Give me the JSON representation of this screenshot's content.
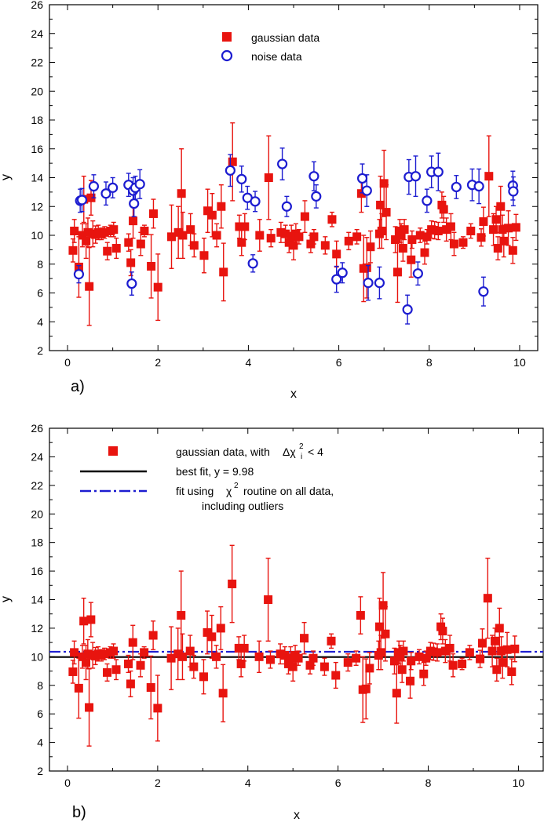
{
  "chart_data": [
    {
      "type": "scatter",
      "panel_label": "a)",
      "xlabel": "x",
      "ylabel": "y",
      "xlim": [
        -0.4,
        10.4
      ],
      "ylim": [
        2,
        26
      ],
      "xticks": [
        "0",
        "2",
        "4",
        "6",
        "8",
        "10"
      ],
      "yticks": [
        "2",
        "4",
        "6",
        "8",
        "10",
        "12",
        "14",
        "16",
        "18",
        "20",
        "22",
        "24",
        "26"
      ],
      "legend_position": "top-center",
      "legend": [
        "gaussian data",
        "noise data"
      ],
      "series": [
        {
          "name": "gaussian data",
          "marker": "filled-square",
          "color": "#e8140f",
          "points": [
            [
              0.12,
              8.95,
              0.8
            ],
            [
              0.15,
              10.3,
              0.8
            ],
            [
              0.25,
              7.8,
              2.1
            ],
            [
              0.33,
              10.0,
              0.8
            ],
            [
              0.36,
              12.5,
              1.6
            ],
            [
              0.41,
              9.6,
              1.2
            ],
            [
              0.45,
              10.2,
              1.0
            ],
            [
              0.48,
              6.45,
              2.7
            ],
            [
              0.52,
              12.6,
              1.2
            ],
            [
              0.56,
              10.1,
              0.9
            ],
            [
              0.62,
              10.05,
              0.6
            ],
            [
              0.68,
              10.2,
              0.5
            ],
            [
              0.75,
              10.1,
              0.4
            ],
            [
              0.82,
              10.2,
              0.4
            ],
            [
              0.88,
              8.9,
              0.6
            ],
            [
              0.95,
              10.3,
              0.4
            ],
            [
              1.02,
              10.4,
              0.5
            ],
            [
              1.08,
              9.1,
              0.7
            ],
            [
              1.35,
              9.5,
              0.6
            ],
            [
              1.4,
              8.1,
              0.9
            ],
            [
              1.45,
              11.0,
              1.2
            ],
            [
              1.62,
              9.4,
              0.8
            ],
            [
              1.7,
              10.3,
              0.4
            ],
            [
              1.85,
              7.85,
              2.2
            ],
            [
              1.9,
              11.5,
              1.0
            ],
            [
              2.0,
              6.4,
              2.3
            ],
            [
              2.3,
              9.9,
              2.2
            ],
            [
              2.45,
              10.2,
              1.8
            ],
            [
              2.52,
              12.9,
              3.1
            ],
            [
              2.55,
              10.0,
              1.6
            ],
            [
              2.72,
              10.4,
              1.1
            ],
            [
              2.8,
              9.3,
              0.8
            ],
            [
              3.02,
              8.6,
              1.2
            ],
            [
              3.1,
              11.7,
              1.5
            ],
            [
              3.2,
              11.4,
              1.5
            ],
            [
              3.3,
              10.0,
              0.8
            ],
            [
              3.4,
              12.0,
              1.5
            ],
            [
              3.45,
              7.45,
              2.0
            ],
            [
              3.65,
              15.1,
              2.7
            ],
            [
              3.8,
              10.6,
              0.8
            ],
            [
              3.85,
              9.5,
              0.9
            ],
            [
              3.92,
              10.6,
              0.9
            ],
            [
              4.25,
              10.0,
              1.1
            ],
            [
              4.45,
              14.0,
              2.9
            ],
            [
              4.5,
              9.8,
              0.6
            ],
            [
              4.72,
              10.2,
              0.7
            ],
            [
              4.82,
              10.1,
              0.6
            ],
            [
              4.9,
              9.5,
              0.7
            ],
            [
              4.95,
              9.9,
              0.8
            ],
            [
              5.0,
              9.3,
              1.0
            ],
            [
              5.05,
              10.1,
              0.7
            ],
            [
              5.12,
              9.9,
              0.5
            ],
            [
              5.25,
              11.3,
              1.1
            ],
            [
              5.38,
              9.4,
              0.6
            ],
            [
              5.45,
              9.9,
              0.5
            ],
            [
              5.7,
              9.3,
              0.6
            ],
            [
              5.85,
              11.1,
              0.5
            ],
            [
              5.95,
              8.7,
              0.9
            ],
            [
              6.22,
              9.6,
              0.6
            ],
            [
              6.4,
              9.9,
              0.5
            ],
            [
              6.5,
              12.9,
              1.3
            ],
            [
              6.55,
              7.7,
              2.3
            ],
            [
              6.62,
              7.75,
              2.1
            ],
            [
              6.7,
              9.2,
              1.1
            ],
            [
              6.9,
              10.1,
              1.0
            ],
            [
              6.92,
              12.1,
              2.0
            ],
            [
              6.95,
              10.3,
              1.2
            ],
            [
              7.0,
              13.6,
              2.3
            ],
            [
              7.05,
              11.6,
              1.9
            ],
            [
              7.25,
              9.7,
              0.9
            ],
            [
              7.3,
              7.45,
              2.1
            ],
            [
              7.35,
              10.3,
              0.8
            ],
            [
              7.38,
              10.0,
              0.8
            ],
            [
              7.42,
              9.1,
              0.9
            ],
            [
              7.45,
              10.4,
              0.7
            ],
            [
              7.6,
              8.3,
              1.2
            ],
            [
              7.62,
              9.7,
              0.6
            ],
            [
              7.8,
              10.0,
              0.5
            ],
            [
              7.9,
              8.8,
              0.8
            ],
            [
              7.95,
              9.9,
              0.5
            ],
            [
              8.05,
              10.4,
              0.6
            ],
            [
              8.12,
              10.35,
              0.6
            ],
            [
              8.2,
              10.3,
              0.6
            ],
            [
              8.28,
              12.1,
              0.9
            ],
            [
              8.32,
              11.8,
              0.9
            ],
            [
              8.38,
              10.4,
              0.8
            ],
            [
              8.48,
              10.6,
              0.9
            ],
            [
              8.55,
              9.4,
              0.8
            ],
            [
              8.75,
              9.5,
              0.4
            ],
            [
              8.92,
              10.3,
              0.5
            ],
            [
              9.15,
              9.85,
              0.6
            ],
            [
              9.2,
              10.95,
              1.0
            ],
            [
              9.32,
              14.1,
              2.8
            ],
            [
              9.42,
              10.4,
              1.1
            ],
            [
              9.48,
              11.1,
              0.9
            ],
            [
              9.52,
              9.1,
              0.8
            ],
            [
              9.58,
              12.0,
              1.4
            ],
            [
              9.62,
              10.4,
              1.0
            ],
            [
              9.65,
              9.6,
              1.1
            ],
            [
              9.75,
              10.5,
              1.2
            ],
            [
              9.85,
              8.95,
              0.9
            ],
            [
              9.92,
              10.55,
              0.9
            ]
          ]
        },
        {
          "name": "noise data",
          "marker": "open-circle",
          "color": "#1c1cd0",
          "points": [
            [
              0.25,
              7.3,
              0.6
            ],
            [
              0.28,
              12.4,
              0.8
            ],
            [
              0.32,
              12.45,
              0.8
            ],
            [
              0.58,
              13.4,
              0.8
            ],
            [
              0.85,
              12.9,
              0.8
            ],
            [
              1.0,
              13.3,
              0.7
            ],
            [
              1.35,
              13.5,
              0.8
            ],
            [
              1.42,
              6.65,
              0.8
            ],
            [
              1.45,
              13.1,
              0.9
            ],
            [
              1.47,
              12.2,
              0.9
            ],
            [
              1.5,
              13.3,
              0.8
            ],
            [
              1.6,
              13.55,
              1.0
            ],
            [
              3.6,
              14.5,
              1.1
            ],
            [
              3.85,
              13.9,
              0.9
            ],
            [
              3.98,
              12.6,
              0.8
            ],
            [
              4.1,
              8.05,
              0.6
            ],
            [
              4.15,
              12.35,
              0.7
            ],
            [
              4.75,
              14.95,
              1.1
            ],
            [
              4.85,
              12.0,
              0.7
            ],
            [
              5.45,
              14.1,
              1.0
            ],
            [
              5.5,
              12.7,
              0.8
            ],
            [
              5.95,
              6.95,
              0.9
            ],
            [
              6.08,
              7.4,
              0.7
            ],
            [
              6.52,
              13.95,
              1.0
            ],
            [
              6.62,
              13.1,
              1.1
            ],
            [
              6.65,
              6.7,
              1.2
            ],
            [
              6.9,
              6.7,
              1.1
            ],
            [
              7.52,
              4.85,
              1.0
            ],
            [
              7.55,
              14.05,
              1.2
            ],
            [
              7.7,
              14.1,
              1.4
            ],
            [
              7.75,
              7.35,
              0.8
            ],
            [
              7.95,
              12.4,
              0.8
            ],
            [
              8.05,
              14.4,
              1.1
            ],
            [
              8.2,
              14.4,
              1.3
            ],
            [
              8.6,
              13.35,
              0.8
            ],
            [
              8.95,
              13.5,
              1.1
            ],
            [
              9.1,
              13.4,
              1.2
            ],
            [
              9.2,
              6.1,
              1.0
            ],
            [
              9.85,
              13.45,
              1.0
            ],
            [
              9.86,
              13.05,
              1.0
            ]
          ]
        }
      ]
    },
    {
      "type": "scatter",
      "panel_label": "b)",
      "xlabel": "x",
      "ylabel": "y",
      "xlim": [
        -0.4,
        10.55
      ],
      "ylim": [
        2,
        26
      ],
      "xticks": [
        "0",
        "2",
        "4",
        "6",
        "8",
        "10"
      ],
      "yticks": [
        "2",
        "4",
        "6",
        "8",
        "10",
        "12",
        "14",
        "16",
        "18",
        "20",
        "22",
        "24",
        "26"
      ],
      "legend_position": "top-left",
      "legend": {
        "gaussian": "gaussian data, with",
        "gaussian_cond_prefix": "Δχ",
        "gaussian_cond_sup": "2",
        "gaussian_cond_sub": "i",
        "gaussian_cond_suffix": "< 4",
        "best_fit": "best fit, y = 9.98",
        "chi_fit_prefix": "fit using",
        "chi_fit_chi": "χ",
        "chi_fit_sup": "2",
        "chi_fit_suffix": "routine on all data,",
        "chi_fit_line2": "including outliers"
      },
      "lines": [
        {
          "name": "best fit, y = 9.98",
          "y": 9.98,
          "color": "#000000",
          "style": "solid"
        },
        {
          "name": "fit using χ2 routine on all data, including outliers",
          "y": 10.35,
          "color": "#1c1cd0",
          "style": "dash-dot"
        }
      ],
      "series_ref": "gaussian data"
    }
  ]
}
